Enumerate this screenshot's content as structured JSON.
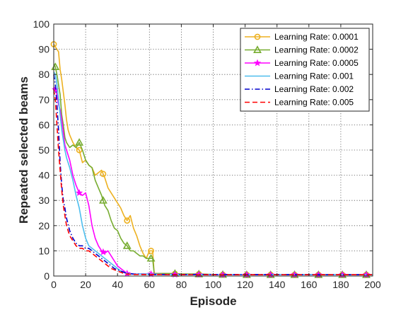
{
  "chart_data": {
    "type": "line",
    "xlabel": "Episode",
    "ylabel": "Repeated selected beams",
    "xlim": [
      0,
      200
    ],
    "ylim": [
      0,
      100
    ],
    "xticks": [
      "0",
      "20",
      "40",
      "60",
      "80",
      "100",
      "120",
      "140",
      "160",
      "180",
      "200"
    ],
    "yticks": [
      "0",
      "10",
      "20",
      "30",
      "40",
      "50",
      "60",
      "70",
      "80",
      "90",
      "100"
    ],
    "grid": true,
    "legend_position": "top-right",
    "series": [
      {
        "name": "Learning Rate: 0.0001",
        "color": "#EDB120",
        "style": "solid",
        "marker": "circle",
        "points": [
          [
            0,
            92
          ],
          [
            1,
            91
          ],
          [
            3,
            89
          ],
          [
            4,
            82
          ],
          [
            5,
            78
          ],
          [
            6,
            73
          ],
          [
            7,
            68
          ],
          [
            8,
            62
          ],
          [
            9,
            58
          ],
          [
            10,
            56
          ],
          [
            12,
            53
          ],
          [
            14,
            51
          ],
          [
            16,
            50
          ],
          [
            18,
            45
          ],
          [
            20,
            46
          ],
          [
            22,
            44
          ],
          [
            24,
            43
          ],
          [
            26,
            40
          ],
          [
            28,
            41
          ],
          [
            30,
            42
          ],
          [
            32,
            39
          ],
          [
            34,
            35
          ],
          [
            36,
            33
          ],
          [
            38,
            31
          ],
          [
            40,
            29
          ],
          [
            42,
            27
          ],
          [
            44,
            24
          ],
          [
            46,
            22
          ],
          [
            48,
            24
          ],
          [
            50,
            19
          ],
          [
            52,
            16
          ],
          [
            54,
            12
          ],
          [
            56,
            9
          ],
          [
            58,
            7
          ],
          [
            60,
            10
          ],
          [
            62,
            10
          ],
          [
            63,
            1
          ],
          [
            66,
            1
          ],
          [
            70,
            1
          ],
          [
            80,
            0.8
          ],
          [
            90,
            0.8
          ],
          [
            100,
            0.6
          ],
          [
            110,
            0.5
          ],
          [
            120,
            0.5
          ],
          [
            150,
            0.5
          ],
          [
            180,
            0.5
          ],
          [
            200,
            0.5
          ]
        ],
        "markers_x": [
          0,
          16,
          31,
          46,
          61,
          76,
          91,
          106,
          121,
          136,
          151,
          166,
          181,
          196
        ]
      },
      {
        "name": "Learning Rate: 0.0002",
        "color": "#77AC30",
        "style": "solid",
        "marker": "triangle",
        "points": [
          [
            0,
            84
          ],
          [
            1,
            83
          ],
          [
            2,
            80
          ],
          [
            3,
            76
          ],
          [
            4,
            72
          ],
          [
            5,
            64
          ],
          [
            6,
            60
          ],
          [
            7,
            55
          ],
          [
            8,
            53
          ],
          [
            10,
            51
          ],
          [
            12,
            52
          ],
          [
            14,
            51
          ],
          [
            16,
            53
          ],
          [
            18,
            50
          ],
          [
            20,
            46
          ],
          [
            22,
            44
          ],
          [
            24,
            43
          ],
          [
            26,
            38
          ],
          [
            28,
            35
          ],
          [
            30,
            32
          ],
          [
            32,
            28
          ],
          [
            34,
            26
          ],
          [
            36,
            22
          ],
          [
            38,
            19
          ],
          [
            40,
            18
          ],
          [
            42,
            15
          ],
          [
            44,
            13
          ],
          [
            46,
            12
          ],
          [
            48,
            10
          ],
          [
            50,
            10
          ],
          [
            52,
            9
          ],
          [
            54,
            8
          ],
          [
            56,
            8
          ],
          [
            58,
            7
          ],
          [
            60,
            7
          ],
          [
            62,
            7
          ],
          [
            63,
            1
          ],
          [
            66,
            1
          ],
          [
            70,
            1
          ],
          [
            76,
            1
          ],
          [
            80,
            0.8
          ],
          [
            90,
            0.8
          ],
          [
            100,
            0.6
          ],
          [
            120,
            0.5
          ],
          [
            150,
            0.5
          ],
          [
            200,
            0.5
          ]
        ],
        "markers_x": [
          1,
          16,
          31,
          46,
          61,
          76,
          91,
          106,
          121,
          136,
          151,
          166,
          181,
          196
        ]
      },
      {
        "name": "Learning Rate: 0.0005",
        "color": "#FF00FF",
        "style": "solid",
        "marker": "star",
        "points": [
          [
            0,
            75
          ],
          [
            1,
            74
          ],
          [
            2,
            72
          ],
          [
            3,
            68
          ],
          [
            4,
            66
          ],
          [
            5,
            62
          ],
          [
            6,
            57
          ],
          [
            7,
            52
          ],
          [
            8,
            50
          ],
          [
            10,
            46
          ],
          [
            12,
            40
          ],
          [
            14,
            36
          ],
          [
            16,
            33
          ],
          [
            18,
            32
          ],
          [
            20,
            33
          ],
          [
            22,
            28
          ],
          [
            24,
            20
          ],
          [
            26,
            15
          ],
          [
            28,
            12
          ],
          [
            30,
            10
          ],
          [
            32,
            9
          ],
          [
            34,
            10
          ],
          [
            36,
            8
          ],
          [
            38,
            6
          ],
          [
            40,
            4
          ],
          [
            42,
            3
          ],
          [
            44,
            2
          ],
          [
            46,
            1
          ],
          [
            48,
            1
          ],
          [
            50,
            0.8
          ],
          [
            55,
            0.8
          ],
          [
            60,
            0.8
          ],
          [
            70,
            0.6
          ],
          [
            90,
            0.6
          ],
          [
            100,
            0.5
          ],
          [
            150,
            0.5
          ],
          [
            200,
            0.5
          ]
        ],
        "markers_x": [
          1,
          16,
          31,
          46,
          61,
          76,
          91,
          106,
          121,
          136,
          151,
          166,
          181,
          196
        ]
      },
      {
        "name": "Learning Rate: 0.001",
        "color": "#4DBEEE",
        "style": "solid",
        "marker": "none",
        "points": [
          [
            0,
            81
          ],
          [
            1,
            80
          ],
          [
            2,
            76
          ],
          [
            3,
            70
          ],
          [
            4,
            64
          ],
          [
            5,
            58
          ],
          [
            6,
            54
          ],
          [
            7,
            50
          ],
          [
            8,
            47
          ],
          [
            10,
            43
          ],
          [
            12,
            38
          ],
          [
            14,
            32
          ],
          [
            16,
            27
          ],
          [
            18,
            20
          ],
          [
            20,
            15
          ],
          [
            22,
            12
          ],
          [
            24,
            11
          ],
          [
            26,
            10
          ],
          [
            28,
            9
          ],
          [
            30,
            8
          ],
          [
            32,
            7
          ],
          [
            34,
            6
          ],
          [
            36,
            5
          ],
          [
            38,
            4
          ],
          [
            40,
            3
          ],
          [
            42,
            2
          ],
          [
            44,
            1.5
          ],
          [
            46,
            1
          ],
          [
            50,
            0.8
          ],
          [
            60,
            0.8
          ],
          [
            70,
            0.6
          ],
          [
            100,
            0.6
          ],
          [
            200,
            0.5
          ]
        ]
      },
      {
        "name": "Learning Rate: 0.002",
        "color": "#0000CC",
        "style": "dashdot",
        "marker": "none",
        "points": [
          [
            0,
            80
          ],
          [
            1,
            76
          ],
          [
            2,
            68
          ],
          [
            3,
            58
          ],
          [
            4,
            45
          ],
          [
            5,
            36
          ],
          [
            6,
            30
          ],
          [
            7,
            27
          ],
          [
            8,
            23
          ],
          [
            10,
            18
          ],
          [
            12,
            15
          ],
          [
            14,
            13
          ],
          [
            16,
            12
          ],
          [
            18,
            12
          ],
          [
            20,
            11
          ],
          [
            22,
            11
          ],
          [
            24,
            10
          ],
          [
            26,
            9
          ],
          [
            28,
            8
          ],
          [
            30,
            7
          ],
          [
            32,
            6
          ],
          [
            34,
            5
          ],
          [
            36,
            4
          ],
          [
            38,
            3
          ],
          [
            40,
            2.5
          ],
          [
            42,
            2
          ],
          [
            44,
            1.5
          ],
          [
            46,
            1
          ],
          [
            50,
            0.8
          ],
          [
            60,
            0.6
          ],
          [
            100,
            0.6
          ],
          [
            200,
            0.5
          ]
        ]
      },
      {
        "name": "Learning Rate: 0.005",
        "color": "#FF0000",
        "style": "dashed",
        "marker": "none",
        "points": [
          [
            0,
            74
          ],
          [
            1,
            70
          ],
          [
            2,
            60
          ],
          [
            3,
            50
          ],
          [
            4,
            42
          ],
          [
            5,
            34
          ],
          [
            6,
            28
          ],
          [
            7,
            24
          ],
          [
            8,
            20
          ],
          [
            10,
            16
          ],
          [
            12,
            14
          ],
          [
            14,
            12
          ],
          [
            16,
            11
          ],
          [
            18,
            11
          ],
          [
            20,
            10
          ],
          [
            22,
            10
          ],
          [
            24,
            9
          ],
          [
            26,
            8
          ],
          [
            28,
            7
          ],
          [
            30,
            6
          ],
          [
            32,
            5
          ],
          [
            34,
            4
          ],
          [
            36,
            3
          ],
          [
            38,
            2.5
          ],
          [
            40,
            2
          ],
          [
            42,
            1.5
          ],
          [
            44,
            1
          ],
          [
            46,
            0.8
          ],
          [
            50,
            0.6
          ],
          [
            100,
            0.5
          ],
          [
            200,
            0.5
          ]
        ]
      }
    ]
  }
}
